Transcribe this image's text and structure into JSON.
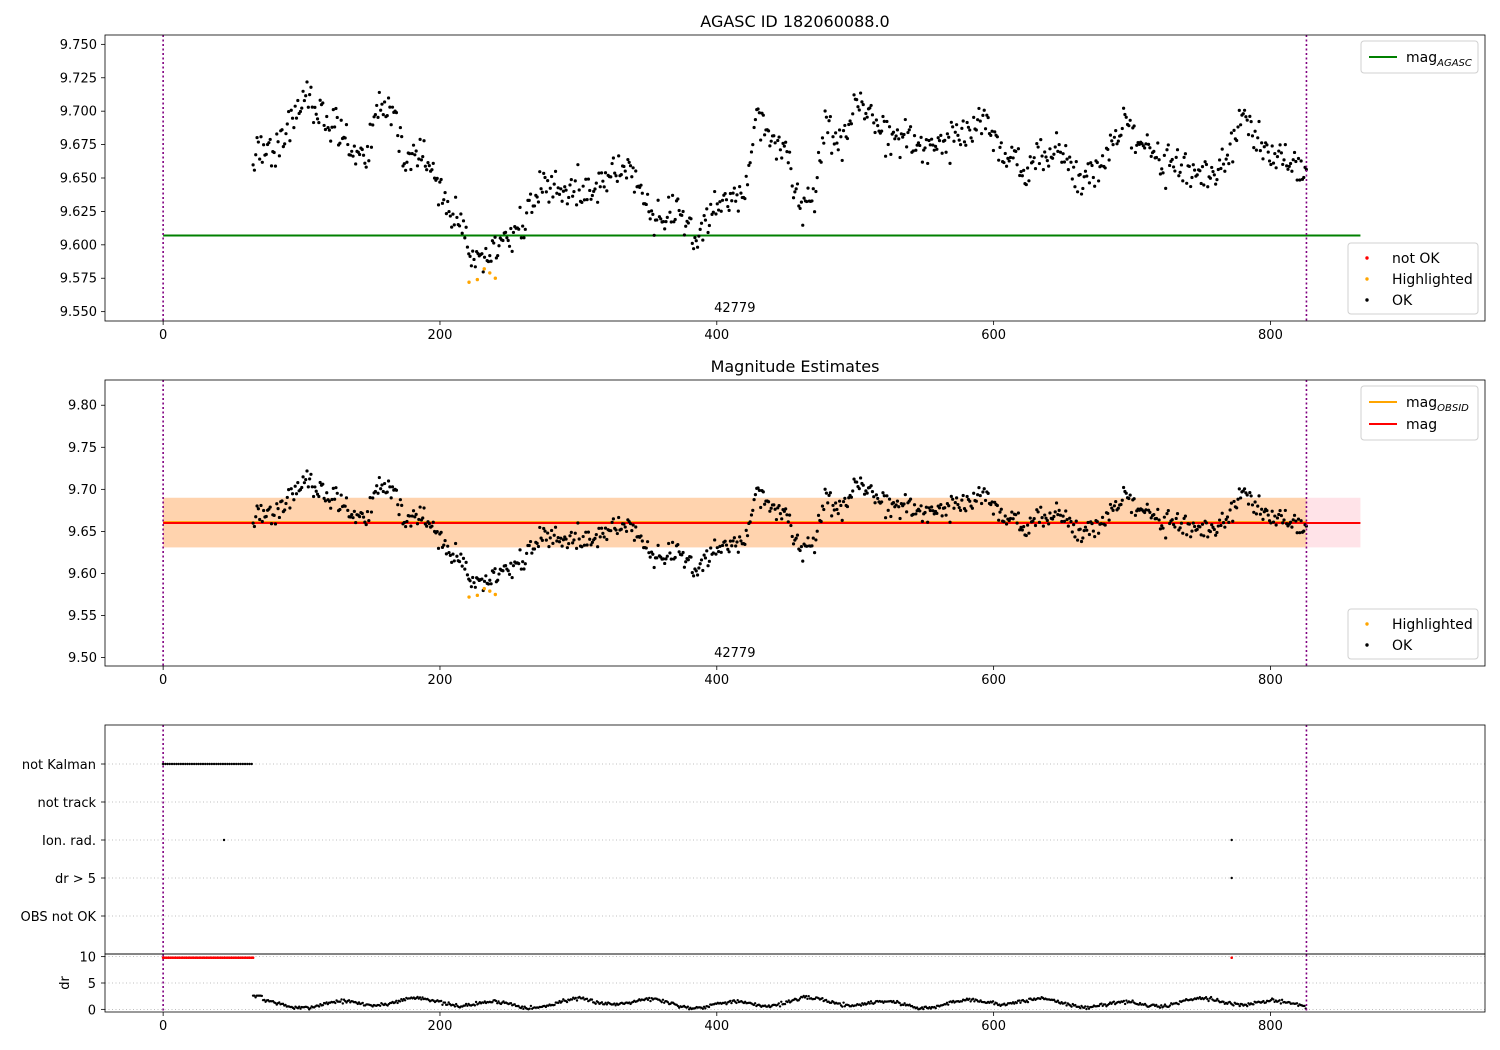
{
  "chart_data": [
    {
      "type": "scatter",
      "title": "AGASC ID 182060088.0",
      "xlim": [
        -42,
        955
      ],
      "ylim": [
        9.543,
        9.757
      ],
      "x_ticks": [
        "0",
        "200",
        "400",
        "600",
        "800"
      ],
      "y_ticks": [
        "9.550",
        "9.575",
        "9.600",
        "9.625",
        "9.650",
        "9.675",
        "9.700",
        "9.725",
        "9.750"
      ],
      "vlines": [
        0,
        826
      ],
      "obsid_label": "42779",
      "obsid_label_x": 413,
      "hlines": [
        {
          "name": "mag_AGASC",
          "y": 9.607,
          "x": [
            0,
            865
          ],
          "color": "#008000"
        }
      ],
      "legend_lines": [
        {
          "label": "mag",
          "sub": "AGASC",
          "color": "#008000"
        }
      ],
      "legend_points": [
        {
          "label": "not OK",
          "color": "#ff0000"
        },
        {
          "label": "Highlighted",
          "color": "#ffa500"
        },
        {
          "label": "OK",
          "color": "#000000"
        }
      ],
      "highlighted_x": [
        221,
        227,
        232,
        236,
        240
      ],
      "highlighted_y": [
        9.572,
        9.574,
        9.582,
        9.579,
        9.575
      ]
    },
    {
      "type": "scatter",
      "title": "Magnitude Estimates",
      "xlim": [
        -42,
        955
      ],
      "ylim": [
        9.49,
        9.83
      ],
      "x_ticks": [
        "0",
        "200",
        "400",
        "600",
        "800"
      ],
      "y_ticks": [
        "9.50",
        "9.55",
        "9.60",
        "9.65",
        "9.70",
        "9.75",
        "9.80"
      ],
      "vlines": [
        0,
        826
      ],
      "obsid_label": "42779",
      "obsid_label_x": 413,
      "bands": [
        {
          "name": "mag_range",
          "y": [
            9.631,
            9.69
          ],
          "x": [
            0,
            865
          ],
          "color": "#ffc0cb",
          "opacity": 0.45
        },
        {
          "name": "mag_obsid_range",
          "y": [
            9.631,
            9.69
          ],
          "x": [
            0,
            826
          ],
          "color": "#ffa500",
          "opacity": 0.25
        }
      ],
      "hlines": [
        {
          "name": "mag_OBSID",
          "y": 9.661,
          "x": [
            0,
            826
          ],
          "color": "#ffa500"
        },
        {
          "name": "mag",
          "y": 9.66,
          "x": [
            0,
            865
          ],
          "color": "#ff0000"
        }
      ],
      "legend_lines": [
        {
          "label": "mag",
          "sub": "OBSID",
          "color": "#ffa500"
        },
        {
          "label": "mag",
          "sub": "",
          "color": "#ff0000"
        }
      ],
      "legend_points": [
        {
          "label": "Highlighted",
          "color": "#ffa500"
        },
        {
          "label": "OK",
          "color": "#000000"
        }
      ],
      "highlighted_x": [
        221,
        227,
        232,
        236,
        240
      ],
      "highlighted_y": [
        9.572,
        9.574,
        9.582,
        9.579,
        9.575
      ]
    },
    {
      "type": "scatter",
      "title": "",
      "xlim": [
        -42,
        955
      ],
      "x_ticks": [
        "0",
        "200",
        "400",
        "600",
        "800"
      ],
      "vlines": [
        0,
        826
      ],
      "flag_rows": [
        "not Kalman",
        "not track",
        "Ion. rad.",
        "dr > 5",
        "OBS not OK"
      ],
      "flags": {
        "not Kalman": {
          "x_range": [
            0,
            65
          ]
        },
        "Ion. rad.": {
          "x": [
            44,
            772
          ]
        },
        "dr > 5": {
          "x": [
            772
          ]
        }
      },
      "dr_ylabel": "dr",
      "dr_ylim": [
        -0.5,
        10.5
      ],
      "dr_ticks": [
        "0",
        "5",
        "10"
      ],
      "dr_red_range": [
        0,
        65
      ],
      "dr_red_value": 9.8,
      "dr_red_extra_x": [
        772
      ]
    }
  ]
}
